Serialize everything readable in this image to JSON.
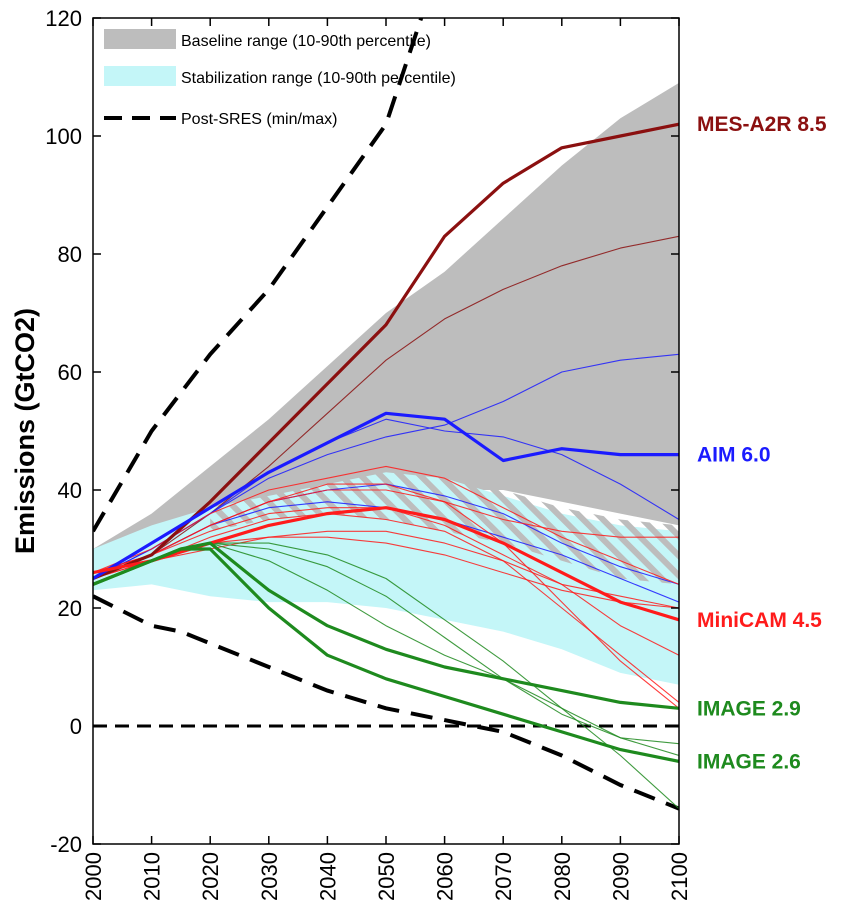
{
  "chart_data": {
    "type": "line",
    "ylabel": "Emissions (GtCO2)",
    "xlim": [
      2000,
      2100
    ],
    "ylim": [
      -20,
      120
    ],
    "x_ticks": [
      2000,
      2010,
      2020,
      2030,
      2040,
      2050,
      2060,
      2070,
      2080,
      2090,
      2100
    ],
    "y_ticks": [
      -20,
      0,
      20,
      40,
      60,
      80,
      100,
      120
    ],
    "legend": {
      "placement": "top-left",
      "entries": [
        {
          "label": "Baseline range (10-90th percentile)",
          "kind": "band",
          "color": "#bdbdbd"
        },
        {
          "label": "Stabilization range (10-90th percentile)",
          "kind": "band",
          "color": "#c4f6f8"
        },
        {
          "label": "Post-SRES (min/max)",
          "kind": "dashed",
          "color": "#000000"
        }
      ]
    },
    "colors": {
      "mes": "#8b1010",
      "aim": "#1b1bff",
      "minicam": "#ff1b1b",
      "image": "#1e8a1e",
      "baseline_band": "#bdbdbd",
      "stabilization_band": "#c4f6f8",
      "hatch": "#bdbdbd"
    },
    "bands": {
      "baseline": {
        "x": [
          2000,
          2010,
          2020,
          2030,
          2040,
          2050,
          2060,
          2070,
          2080,
          2090,
          2100
        ],
        "upper": [
          30,
          36,
          44,
          52,
          61,
          70,
          77,
          86,
          95,
          103,
          109
        ],
        "lower": [
          25,
          29,
          31,
          34,
          36,
          38,
          40,
          40,
          38,
          36,
          34
        ]
      },
      "stabilization": {
        "x": [
          2000,
          2010,
          2020,
          2030,
          2040,
          2050,
          2060,
          2070,
          2080,
          2090,
          2100
        ],
        "upper": [
          30,
          34,
          37,
          39,
          41,
          43,
          42,
          39,
          36,
          34,
          33
        ],
        "lower": [
          23,
          24,
          22,
          21,
          21,
          20,
          18,
          16,
          13,
          9,
          7
        ]
      },
      "hatched": {
        "x": [
          2020,
          2030,
          2040,
          2050,
          2060,
          2070,
          2080,
          2090,
          2100
        ],
        "upper": [
          36,
          40,
          42,
          43,
          43,
          40,
          37,
          35,
          34
        ],
        "lower": [
          33,
          35,
          36,
          35,
          33,
          31,
          28,
          25,
          24
        ]
      }
    },
    "post_sres": {
      "max": {
        "x": [
          2000,
          2010,
          2020,
          2030,
          2040,
          2050,
          2056
        ],
        "y": [
          33,
          50,
          63,
          74,
          88,
          102,
          120
        ]
      },
      "min": {
        "x": [
          2000,
          2010,
          2015,
          2020,
          2030,
          2040,
          2050,
          2060,
          2070,
          2080,
          2090,
          2100
        ],
        "y": [
          22,
          17,
          16,
          14,
          10,
          6,
          3,
          1,
          -1,
          -5,
          -10,
          -14
        ]
      },
      "zero": {
        "x": [
          2000,
          2100
        ],
        "y": [
          0,
          0
        ]
      }
    },
    "series": [
      {
        "name": "MES-A2R 8.5",
        "group": "mes",
        "label": true,
        "width": 3.2,
        "x": [
          2000,
          2010,
          2020,
          2030,
          2040,
          2050,
          2060,
          2070,
          2080,
          2090,
          2100
        ],
        "y": [
          25,
          29,
          38,
          48,
          58,
          68,
          83,
          92,
          98,
          100,
          102
        ]
      },
      {
        "group": "mes",
        "width": 1.1,
        "x": [
          2000,
          2010,
          2020,
          2030,
          2040,
          2050,
          2060,
          2070,
          2080,
          2090,
          2100
        ],
        "y": [
          25,
          29,
          36,
          44,
          53,
          62,
          69,
          74,
          78,
          81,
          83
        ]
      },
      {
        "name": "AIM 6.0",
        "group": "aim",
        "label": true,
        "width": 3.2,
        "x": [
          2000,
          2010,
          2020,
          2030,
          2040,
          2050,
          2060,
          2070,
          2080,
          2090,
          2100
        ],
        "y": [
          25,
          31,
          37,
          43,
          48,
          53,
          52,
          45,
          47,
          46,
          46
        ]
      },
      {
        "group": "aim",
        "width": 1.1,
        "x": [
          2000,
          2010,
          2020,
          2030,
          2040,
          2050,
          2060,
          2070,
          2080,
          2090,
          2100
        ],
        "y": [
          25,
          30,
          36,
          42,
          46,
          49,
          51,
          55,
          60,
          62,
          63
        ]
      },
      {
        "group": "aim",
        "width": 1.1,
        "x": [
          2000,
          2010,
          2020,
          2030,
          2040,
          2050,
          2060,
          2070,
          2080,
          2090,
          2100
        ],
        "y": [
          25,
          30,
          36,
          43,
          48,
          52,
          50,
          49,
          46,
          41,
          35
        ]
      },
      {
        "group": "aim",
        "width": 1.1,
        "x": [
          2000,
          2010,
          2020,
          2030,
          2040,
          2050,
          2060,
          2070,
          2080,
          2090,
          2100
        ],
        "y": [
          25,
          29,
          34,
          38,
          40,
          41,
          39,
          36,
          31,
          27,
          24
        ]
      },
      {
        "group": "aim",
        "width": 1.1,
        "x": [
          2000,
          2010,
          2020,
          2030,
          2040,
          2050,
          2060,
          2070,
          2080,
          2090,
          2100
        ],
        "y": [
          25,
          29,
          34,
          37,
          38,
          37,
          35,
          32,
          29,
          25,
          21
        ]
      },
      {
        "name": "MiniCAM 4.5",
        "group": "minicam",
        "label": true,
        "width": 3.2,
        "x": [
          2000,
          2010,
          2020,
          2030,
          2040,
          2050,
          2060,
          2070,
          2080,
          2090,
          2100
        ],
        "y": [
          26,
          28,
          31,
          34,
          36,
          37,
          35,
          31,
          26,
          21,
          18
        ]
      },
      {
        "group": "minicam",
        "width": 1.1,
        "x": [
          2000,
          2010,
          2020,
          2030,
          2040,
          2050,
          2060,
          2070,
          2080,
          2090,
          2100
        ],
        "y": [
          26,
          30,
          36,
          40,
          42,
          44,
          42,
          37,
          32,
          28,
          24
        ]
      },
      {
        "group": "minicam",
        "width": 1.1,
        "x": [
          2000,
          2010,
          2020,
          2030,
          2040,
          2050,
          2060,
          2070,
          2080,
          2090,
          2100
        ],
        "y": [
          26,
          29,
          34,
          38,
          40,
          40,
          38,
          35,
          33,
          32,
          32
        ]
      },
      {
        "group": "minicam",
        "width": 1.1,
        "x": [
          2000,
          2010,
          2020,
          2030,
          2040,
          2050,
          2060,
          2070,
          2080,
          2090,
          2100
        ],
        "y": [
          25,
          28,
          31,
          32,
          32,
          31,
          29,
          26,
          23,
          21,
          20
        ]
      },
      {
        "group": "minicam",
        "width": 1.1,
        "x": [
          2000,
          2010,
          2020,
          2030,
          2040,
          2050,
          2060,
          2070,
          2080,
          2090,
          2100
        ],
        "y": [
          26,
          29,
          33,
          36,
          37,
          37,
          34,
          29,
          24,
          17,
          12
        ]
      },
      {
        "group": "minicam",
        "width": 1.1,
        "x": [
          2000,
          2010,
          2020,
          2030,
          2040,
          2050,
          2060,
          2070,
          2080,
          2090,
          2100
        ],
        "y": [
          26,
          28,
          32,
          35,
          36,
          35,
          33,
          28,
          20,
          12,
          4
        ]
      },
      {
        "group": "minicam",
        "width": 1.1,
        "x": [
          2000,
          2010,
          2020,
          2030,
          2040,
          2050,
          2060,
          2070,
          2080,
          2090,
          2100
        ],
        "y": [
          25,
          28,
          30,
          32,
          33,
          33,
          31,
          28,
          24,
          22,
          20
        ]
      },
      {
        "group": "minicam",
        "width": 1.1,
        "x": [
          2000,
          2010,
          2020,
          2030,
          2040,
          2050,
          2060,
          2070,
          2080,
          2090,
          2100
        ],
        "y": [
          26,
          29,
          34,
          38,
          41,
          41,
          38,
          31,
          21,
          11,
          3
        ]
      },
      {
        "name": "IMAGE 2.9",
        "group": "image",
        "label": true,
        "width": 3.2,
        "x": [
          2000,
          2010,
          2015,
          2020,
          2030,
          2040,
          2050,
          2060,
          2070,
          2080,
          2090,
          2100
        ],
        "y": [
          24,
          28,
          30,
          31,
          23,
          17,
          13,
          10,
          8,
          6,
          4,
          3
        ]
      },
      {
        "name": "IMAGE 2.6",
        "group": "image",
        "label": true,
        "width": 3.2,
        "x": [
          2000,
          2010,
          2015,
          2020,
          2030,
          2040,
          2050,
          2060,
          2070,
          2080,
          2090,
          2100
        ],
        "y": [
          24,
          28,
          30,
          30,
          20,
          12,
          8,
          5,
          2,
          -1,
          -4,
          -6
        ]
      },
      {
        "group": "image",
        "width": 1.1,
        "x": [
          2000,
          2010,
          2020,
          2030,
          2040,
          2050,
          2060,
          2070,
          2080,
          2090,
          2100
        ],
        "y": [
          24,
          28,
          31,
          28,
          23,
          17,
          12,
          8,
          3,
          -2,
          -3
        ]
      },
      {
        "group": "image",
        "width": 1.1,
        "x": [
          2000,
          2010,
          2020,
          2030,
          2040,
          2050,
          2060,
          2070,
          2080,
          2090,
          2100
        ],
        "y": [
          24,
          28,
          31,
          30,
          27,
          22,
          15,
          8,
          2,
          -2,
          -5
        ]
      },
      {
        "group": "image",
        "width": 1.1,
        "x": [
          2000,
          2010,
          2020,
          2030,
          2040,
          2050,
          2060,
          2070,
          2080,
          2090,
          2100
        ],
        "y": [
          24,
          28,
          31,
          31,
          29,
          25,
          18,
          11,
          3,
          -5,
          -14
        ]
      }
    ]
  }
}
